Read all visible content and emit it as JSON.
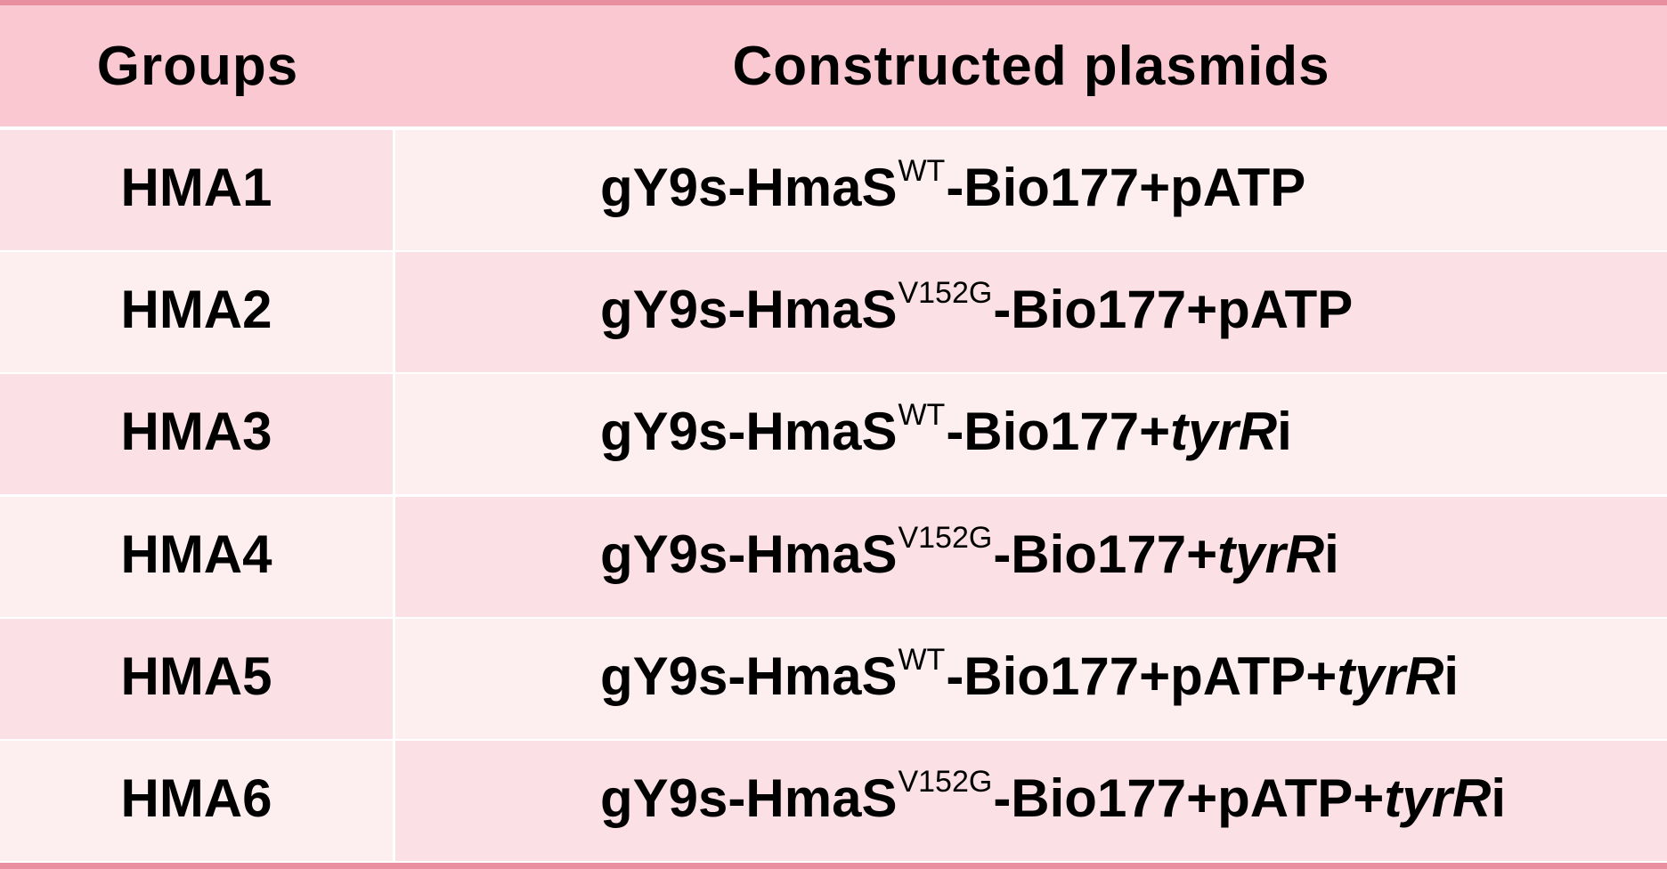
{
  "colors": {
    "rule": "#e8909f",
    "header_bg": "#f9c8d1",
    "row_light": "#fdeef0",
    "row_medium": "#fbe1e6",
    "separator": "#ffffff",
    "text": "#000000"
  },
  "table": {
    "headers": {
      "groups": "Groups",
      "plasmids": "Constructed plasmids"
    },
    "rows": [
      {
        "group": "HMA1",
        "plasmid": {
          "prefix": "gY9s-HmaS",
          "variant": "WT",
          "middle": "-Bio177+pATP",
          "italic": "",
          "suffix": ""
        }
      },
      {
        "group": "HMA2",
        "plasmid": {
          "prefix": "gY9s-HmaS",
          "variant": "V152G",
          "middle": "-Bio177+pATP",
          "italic": "",
          "suffix": ""
        }
      },
      {
        "group": "HMA3",
        "plasmid": {
          "prefix": "gY9s-HmaS",
          "variant": "WT",
          "middle": "-Bio177+",
          "italic": "tyrR",
          "suffix": "i"
        }
      },
      {
        "group": "HMA4",
        "plasmid": {
          "prefix": "gY9s-HmaS",
          "variant": "V152G",
          "middle": "-Bio177+",
          "italic": "tyrR",
          "suffix": "i"
        }
      },
      {
        "group": "HMA5",
        "plasmid": {
          "prefix": "gY9s-HmaS",
          "variant": "WT",
          "middle": "-Bio177+pATP+",
          "italic": "tyrR",
          "suffix": "i"
        }
      },
      {
        "group": "HMA6",
        "plasmid": {
          "prefix": "gY9s-HmaS",
          "variant": "V152G",
          "middle": "-Bio177+pATP+",
          "italic": "tyrR",
          "suffix": "i"
        }
      }
    ]
  }
}
